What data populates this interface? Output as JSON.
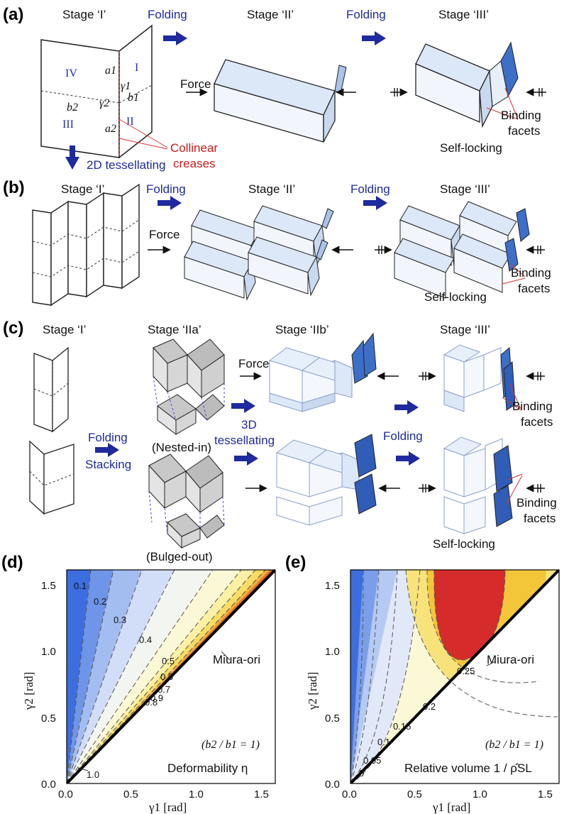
{
  "panels": {
    "a": {
      "label": "(a)",
      "stages": [
        "Stage ‘I’",
        "Stage ‘II’",
        "Stage ‘III’"
      ],
      "arrow_labels": [
        "Folding",
        "Folding"
      ],
      "force": "Force",
      "regions": [
        "IV",
        "I",
        "III",
        "II"
      ],
      "symbols": [
        "a1",
        "b1",
        "b2",
        "a2",
        "γ1",
        "γ2"
      ],
      "collinear": [
        "Collinear",
        "creases"
      ],
      "binding": [
        "Binding",
        "facets"
      ],
      "self_locking": "Self-locking",
      "tessellating": "2D tessellating"
    },
    "b": {
      "label": "(b)",
      "stages": [
        "Stage ‘I’",
        "Stage ‘II’",
        "Stage ‘III’"
      ],
      "arrow_labels": [
        "Folding",
        "Folding"
      ],
      "force": "Force",
      "binding": [
        "Binding",
        "facets"
      ],
      "self_locking": "Self-locking"
    },
    "c": {
      "label": "(c)",
      "stages": [
        "Stage ‘I’",
        "Stage ‘IIa’",
        "Stage ‘IIb’",
        "Stage ‘III’"
      ],
      "folding_stacking": [
        "Folding",
        "Stacking"
      ],
      "tessellating": [
        "3D",
        "tessellating"
      ],
      "folding": "Folding",
      "force": "Force",
      "nested": "(Nested-in)",
      "bulged": "(Bulged-out)",
      "binding": [
        "Binding",
        "facets"
      ],
      "binding2": [
        "Binding",
        "facets"
      ],
      "self_locking": "Self-locking"
    }
  },
  "chart_data": [
    {
      "type": "heatmap",
      "label": "(d)",
      "xlabel": "γ1 [rad]",
      "ylabel": "γ2 [rad]",
      "xlim": [
        0,
        1.6
      ],
      "ylim": [
        0,
        1.6
      ],
      "xticks": [
        "0.0",
        "0.5",
        "1.0",
        "1.5"
      ],
      "yticks": [
        "0.0",
        "0.5",
        "1.0",
        "1.5"
      ],
      "contour_labels": [
        "0.1",
        "0.2",
        "0.3",
        "0.4",
        "0.5",
        "0.6",
        "0.7",
        "0.8",
        "0.9",
        "1.0"
      ],
      "annotation_line": "Miura-ori",
      "condition": "(b2 / b1 = 1)",
      "quantity": "Deformability η"
    },
    {
      "type": "heatmap",
      "label": "(e)",
      "xlabel": "γ1 [rad]",
      "ylabel": "γ2 [rad]",
      "xlim": [
        0,
        1.6
      ],
      "ylim": [
        0,
        1.6
      ],
      "xticks": [
        "0.0",
        "0.5",
        "1.0",
        "1.5"
      ],
      "yticks": [
        "0.0",
        "0.5",
        "1.0",
        "1.5"
      ],
      "contour_labels": [
        "0.25",
        "0.2",
        "0.15",
        "0.1",
        "0.05",
        "0"
      ],
      "annotation_line": "Miura-ori",
      "condition": "(b2 / b1 = 1)",
      "quantity": "Relative volume 1 / ρ̂SL"
    }
  ]
}
